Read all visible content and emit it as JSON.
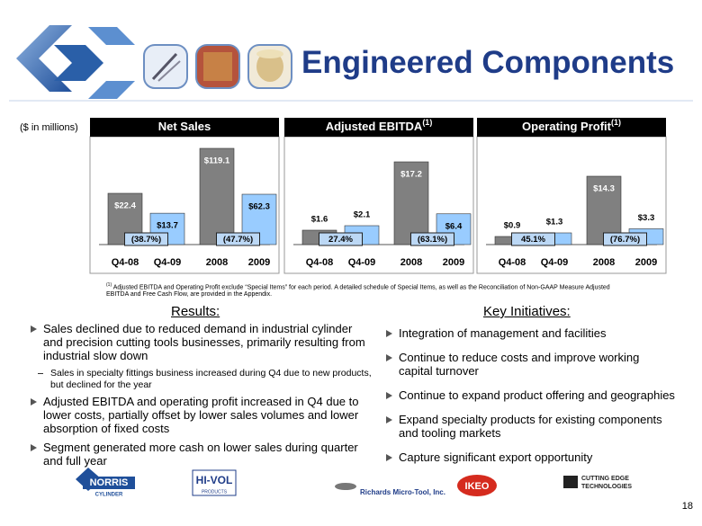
{
  "header": {
    "title": "Engineered Components"
  },
  "units_note": "($ in millions)",
  "chart_data": [
    {
      "type": "bar",
      "title": "Net Sales",
      "categories": [
        "Q4-08",
        "Q4-09",
        "2008",
        "2009"
      ],
      "values": [
        22.4,
        13.7,
        119.1,
        62.3
      ],
      "value_labels": [
        "$22.4",
        "$13.7",
        "$119.1",
        "$62.3"
      ],
      "colors": [
        "#808080",
        "#99ccff",
        "#808080",
        "#99ccff"
      ],
      "changes": [
        "(38.7%)",
        "(47.7%)"
      ]
    },
    {
      "type": "bar",
      "title": "Adjusted EBITDA",
      "title_note": "(1)",
      "categories": [
        "Q4-08",
        "Q4-09",
        "2008",
        "2009"
      ],
      "values": [
        1.6,
        2.1,
        17.2,
        6.4
      ],
      "value_labels": [
        "$1.6",
        "$2.1",
        "$17.2",
        "$6.4"
      ],
      "colors": [
        "#808080",
        "#99ccff",
        "#808080",
        "#99ccff"
      ],
      "changes": [
        "27.4%",
        "(63.1%)"
      ]
    },
    {
      "type": "bar",
      "title": "Operating Profit",
      "title_note": "(1)",
      "categories": [
        "Q4-08",
        "Q4-09",
        "2008",
        "2009"
      ],
      "values": [
        0.9,
        1.3,
        14.3,
        3.3
      ],
      "value_labels": [
        "$0.9",
        "$1.3",
        "$14.3",
        "$3.3"
      ],
      "colors": [
        "#808080",
        "#99ccff",
        "#808080",
        "#99ccff"
      ],
      "changes": [
        "45.1%",
        "(76.7%)"
      ]
    }
  ],
  "footnote": {
    "marker": "(1)",
    "text": "Adjusted EBITDA and Operating Profit exclude “Special Items” for each period. A detailed schedule of Special Items, as well as the Reconciliation of Non-GAAP Measure Adjusted EBITDA and Free Cash Flow, are provided in the Appendix."
  },
  "results": {
    "title": "Results:",
    "items": [
      {
        "text": "Sales declined due to reduced demand in industrial cylinder and precision cutting tools businesses, primarily resulting from industrial slow down",
        "sub": [
          "Sales in specialty fittings business increased during Q4 due to new products, but declined for the year"
        ]
      },
      {
        "text": "Adjusted EBITDA and operating profit increased in Q4 due to lower costs, partially offset by lower sales volumes and lower absorption of fixed costs"
      },
      {
        "text": "Segment generated more cash on lower sales during quarter and full year"
      }
    ]
  },
  "initiatives": {
    "title": "Key Initiatives:",
    "items": [
      "Integration of management and facilities",
      "Continue to reduce costs and improve working capital turnover",
      "Continue to expand product offering and geographies",
      "Expand specialty products for existing components and tooling markets",
      "Capture significant export opportunity"
    ]
  },
  "logos": {
    "norris": "NORRIS",
    "norris_sub": "CYLINDER",
    "hivol": "HI-VOL",
    "hivol_sub": "PRODUCTS",
    "richards": "Richards Micro-Tool, Inc.",
    "ikeo": "IKEO",
    "cet_1": "CUTTING EDGE",
    "cet_2": "TECHNOLOGIES"
  },
  "page_number": "18"
}
